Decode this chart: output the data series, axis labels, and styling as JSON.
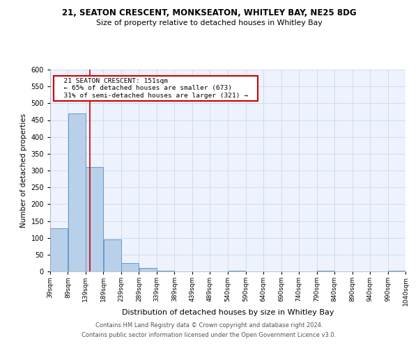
{
  "title1": "21, SEATON CRESCENT, MONKSEATON, WHITLEY BAY, NE25 8DG",
  "title2": "Size of property relative to detached houses in Whitley Bay",
  "xlabel": "Distribution of detached houses by size in Whitley Bay",
  "ylabel": "Number of detached properties",
  "bin_edges": [
    39,
    89,
    139,
    189,
    239,
    289,
    339,
    389,
    439,
    489,
    540,
    590,
    640,
    690,
    740,
    790,
    840,
    890,
    940,
    990,
    1040
  ],
  "bar_heights": [
    128,
    470,
    310,
    95,
    25,
    10,
    3,
    0,
    0,
    0,
    3,
    0,
    0,
    0,
    0,
    3,
    0,
    0,
    0,
    3
  ],
  "bar_color": "#b8d0ea",
  "bar_edge_color": "#6699cc",
  "vline_x": 151,
  "vline_color": "#cc0000",
  "annotation_text": "  21 SEATON CRESCENT: 151sqm  \n  ← 65% of detached houses are smaller (673)  \n  31% of semi-detached houses are larger (321) →  ",
  "annotation_box_color": "#ffffff",
  "annotation_box_edge_color": "#cc0000",
  "ylim": [
    0,
    600
  ],
  "yticks": [
    0,
    50,
    100,
    150,
    200,
    250,
    300,
    350,
    400,
    450,
    500,
    550,
    600
  ],
  "footer1": "Contains HM Land Registry data © Crown copyright and database right 2024.",
  "footer2": "Contains public sector information licensed under the Open Government Licence v3.0.",
  "tick_labels": [
    "39sqm",
    "89sqm",
    "139sqm",
    "189sqm",
    "239sqm",
    "289sqm",
    "339sqm",
    "389sqm",
    "439sqm",
    "489sqm",
    "540sqm",
    "590sqm",
    "640sqm",
    "690sqm",
    "740sqm",
    "790sqm",
    "840sqm",
    "890sqm",
    "940sqm",
    "990sqm",
    "1040sqm"
  ],
  "grid_color": "#ccd8ee",
  "background_color": "#edf2fc"
}
